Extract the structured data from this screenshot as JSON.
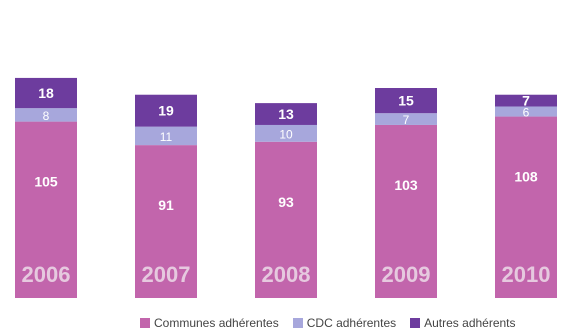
{
  "chart_data": {
    "type": "bar",
    "stacked": true,
    "categories": [
      "2006",
      "2007",
      "2008",
      "2009",
      "2010"
    ],
    "series": [
      {
        "name": "Communes adhérentes",
        "values": [
          105,
          91,
          93,
          103,
          108
        ],
        "color": "#c265ac"
      },
      {
        "name": "CDC adhérentes",
        "values": [
          8,
          11,
          10,
          7,
          6
        ],
        "color": "#a7a7dc"
      },
      {
        "name": "Autres adhérents",
        "values": [
          18,
          19,
          13,
          15,
          7
        ],
        "color": "#6d3c9e"
      }
    ],
    "title": "",
    "xlabel": "",
    "ylabel": "",
    "ylim": [
      0,
      131
    ],
    "grid": false,
    "legend": "bottom"
  }
}
